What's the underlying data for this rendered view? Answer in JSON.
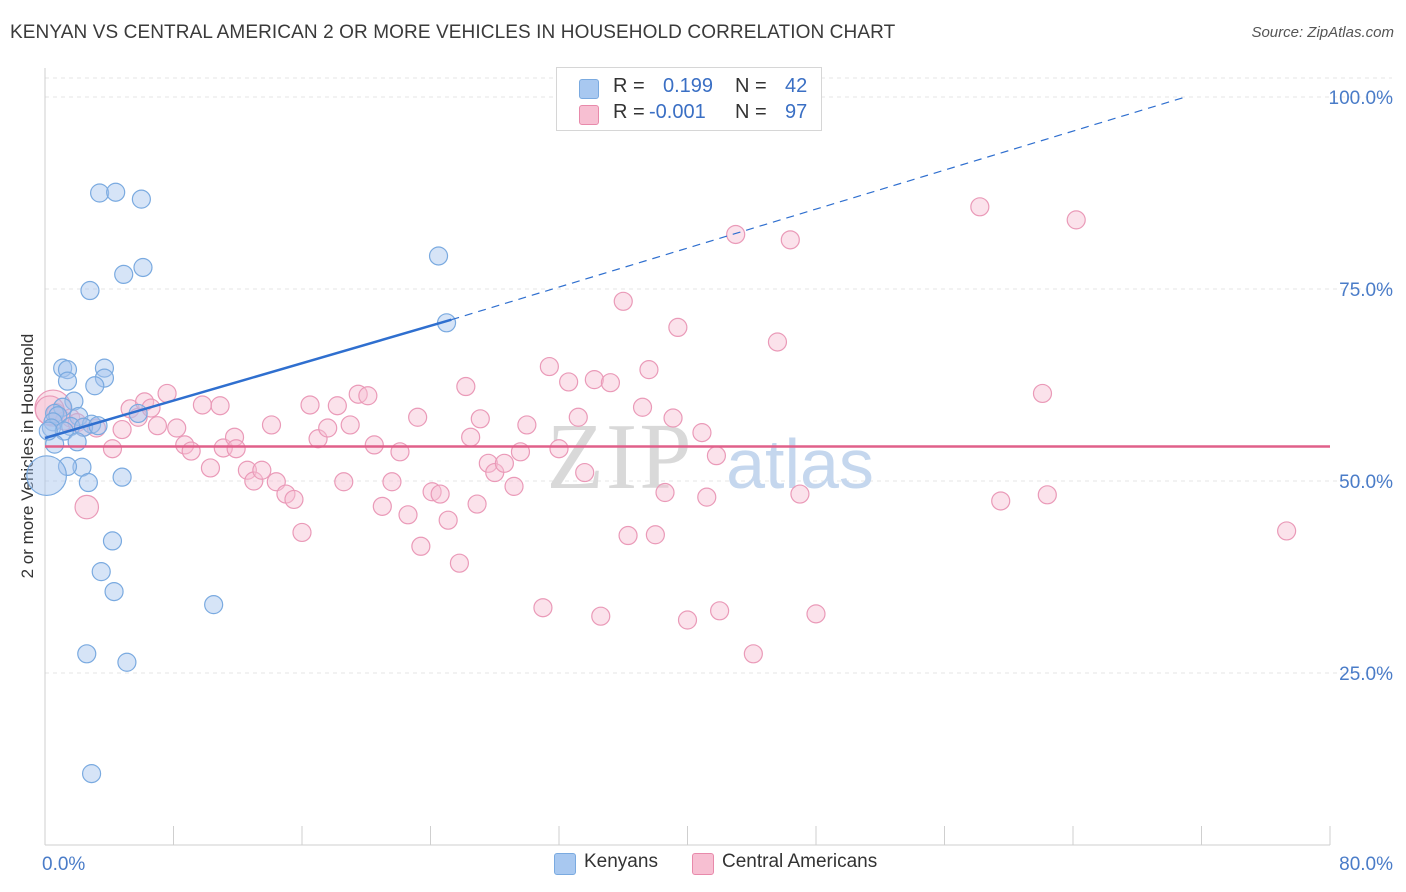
{
  "title": "KENYAN VS CENTRAL AMERICAN 2 OR MORE VEHICLES IN HOUSEHOLD CORRELATION CHART",
  "source": "Source: ZipAtlas.com",
  "legend": {
    "rows": [
      {
        "r_label": "R =",
        "r_value": "0.199",
        "n_label": "N =",
        "n_value": "42",
        "color": "#a8c8f0",
        "border": "#7aaae0"
      },
      {
        "r_label": "R =",
        "r_value": "-0.001",
        "n_label": "N =",
        "n_value": "97",
        "color": "#f7bfd2",
        "border": "#e88aab"
      }
    ]
  },
  "bottom_legend": {
    "kenyans": "Kenyans",
    "central_americans": "Central Americans"
  },
  "chart_data": {
    "type": "scatter",
    "title": "KENYAN VS CENTRAL AMERICAN 2 OR MORE VEHICLES IN HOUSEHOLD CORRELATION CHART",
    "xlabel": "",
    "ylabel": "2 or more Vehicles in Household",
    "xlim": [
      0,
      80
    ],
    "ylim": [
      0,
      105
    ],
    "x_tick_labels": [
      "0.0%",
      "80.0%"
    ],
    "y_tick_labels": [
      "25.0%",
      "50.0%",
      "75.0%",
      "100.0%"
    ],
    "y_ticks": [
      25,
      50,
      75,
      100
    ],
    "colors": {
      "kenyans": "#6fa0e0",
      "central_americans": "#ee8fb0",
      "kenyans_line": "#2f6fcf",
      "central_line": "#e0608a"
    },
    "series": [
      {
        "name": "Kenyans",
        "trend": {
          "x0": 0,
          "y0": 55.6,
          "x1": 25.3,
          "y1": 71.0,
          "dash_to_x": 71,
          "dash_to_y": 100
        },
        "points": [
          [
            3.4,
            87.5
          ],
          [
            4.4,
            87.6
          ],
          [
            6.0,
            86.7
          ],
          [
            6.1,
            77.8
          ],
          [
            4.9,
            76.9
          ],
          [
            2.8,
            74.8
          ],
          [
            24.5,
            79.3
          ],
          [
            25.0,
            70.6
          ],
          [
            1.1,
            64.7
          ],
          [
            1.4,
            64.5
          ],
          [
            3.7,
            64.7
          ],
          [
            3.7,
            63.4
          ],
          [
            1.4,
            63.0
          ],
          [
            3.1,
            62.4
          ],
          [
            1.8,
            60.4
          ],
          [
            1.1,
            59.6
          ],
          [
            0.6,
            58.8
          ],
          [
            0.8,
            58.5
          ],
          [
            5.8,
            58.8
          ],
          [
            2.1,
            58.4
          ],
          [
            0.5,
            57.7
          ],
          [
            2.9,
            57.4
          ],
          [
            1.6,
            57.1
          ],
          [
            0.4,
            56.9
          ],
          [
            1.2,
            56.5
          ],
          [
            2.4,
            57.0
          ],
          [
            3.3,
            57.2
          ],
          [
            0.6,
            54.8
          ],
          [
            2.0,
            55.1
          ],
          [
            2.3,
            51.8
          ],
          [
            1.4,
            51.9
          ],
          [
            0.1,
            50.7
          ],
          [
            4.8,
            50.5
          ],
          [
            2.7,
            49.8
          ],
          [
            4.2,
            42.2
          ],
          [
            3.5,
            38.2
          ],
          [
            4.3,
            35.6
          ],
          [
            10.5,
            33.9
          ],
          [
            2.6,
            27.5
          ],
          [
            5.1,
            26.4
          ],
          [
            2.9,
            11.9
          ],
          [
            0.2,
            56.5
          ]
        ],
        "sizes": [
          1,
          1,
          1,
          1,
          1,
          1,
          1,
          1,
          1,
          1,
          1,
          1,
          1,
          1,
          1,
          1,
          1,
          1,
          1,
          1,
          1,
          1,
          1,
          1,
          1,
          1,
          1,
          1,
          1,
          1,
          1,
          2.2,
          1,
          1,
          1,
          1,
          1,
          1,
          1,
          1,
          1,
          1
        ]
      },
      {
        "name": "Central Americans",
        "trend": {
          "x0": 0,
          "y0": 54.5,
          "x1": 80,
          "y1": 54.5
        },
        "points": [
          [
            0.5,
            59.5
          ],
          [
            0.7,
            58.9
          ],
          [
            1.2,
            57.8
          ],
          [
            1.6,
            58.2
          ],
          [
            2.0,
            57.6
          ],
          [
            2.4,
            57.0
          ],
          [
            2.6,
            46.6
          ],
          [
            3.2,
            56.9
          ],
          [
            4.2,
            54.2
          ],
          [
            4.8,
            56.7
          ],
          [
            5.3,
            59.4
          ],
          [
            5.8,
            58.3
          ],
          [
            6.2,
            60.3
          ],
          [
            6.6,
            59.5
          ],
          [
            7.0,
            57.2
          ],
          [
            7.6,
            61.4
          ],
          [
            8.2,
            56.9
          ],
          [
            8.7,
            54.7
          ],
          [
            9.1,
            53.9
          ],
          [
            9.8,
            59.9
          ],
          [
            10.3,
            51.7
          ],
          [
            10.9,
            59.8
          ],
          [
            11.1,
            54.3
          ],
          [
            11.8,
            55.7
          ],
          [
            11.9,
            54.2
          ],
          [
            12.6,
            51.4
          ],
          [
            13.0,
            50.0
          ],
          [
            13.5,
            51.4
          ],
          [
            14.1,
            57.3
          ],
          [
            14.4,
            49.9
          ],
          [
            15.0,
            48.3
          ],
          [
            15.5,
            47.6
          ],
          [
            16.0,
            43.3
          ],
          [
            16.5,
            59.9
          ],
          [
            17.0,
            55.5
          ],
          [
            17.6,
            56.9
          ],
          [
            18.2,
            59.8
          ],
          [
            18.6,
            49.9
          ],
          [
            19.0,
            57.3
          ],
          [
            19.5,
            61.3
          ],
          [
            20.1,
            61.1
          ],
          [
            20.5,
            54.7
          ],
          [
            21.0,
            46.7
          ],
          [
            21.6,
            49.9
          ],
          [
            22.1,
            53.8
          ],
          [
            22.6,
            45.6
          ],
          [
            23.2,
            58.3
          ],
          [
            23.4,
            41.5
          ],
          [
            24.1,
            48.6
          ],
          [
            24.6,
            48.3
          ],
          [
            25.1,
            44.9
          ],
          [
            25.8,
            39.3
          ],
          [
            26.2,
            62.3
          ],
          [
            26.5,
            55.7
          ],
          [
            27.1,
            58.1
          ],
          [
            27.6,
            52.3
          ],
          [
            28.0,
            51.1
          ],
          [
            28.6,
            52.3
          ],
          [
            29.2,
            49.3
          ],
          [
            29.6,
            53.8
          ],
          [
            30.0,
            57.3
          ],
          [
            31.0,
            33.5
          ],
          [
            31.4,
            64.9
          ],
          [
            32.0,
            54.2
          ],
          [
            32.6,
            62.9
          ],
          [
            33.2,
            58.3
          ],
          [
            33.6,
            51.1
          ],
          [
            34.2,
            63.2
          ],
          [
            34.6,
            32.4
          ],
          [
            35.2,
            62.8
          ],
          [
            36.0,
            73.4
          ],
          [
            36.3,
            42.9
          ],
          [
            37.2,
            59.6
          ],
          [
            37.6,
            64.5
          ],
          [
            38.0,
            43.0
          ],
          [
            38.6,
            48.5
          ],
          [
            39.1,
            58.2
          ],
          [
            39.4,
            70.0
          ],
          [
            40.0,
            31.9
          ],
          [
            40.9,
            56.3
          ],
          [
            41.2,
            47.9
          ],
          [
            41.8,
            53.3
          ],
          [
            42.0,
            33.1
          ],
          [
            43.0,
            82.1
          ],
          [
            44.1,
            27.5
          ],
          [
            45.6,
            68.1
          ],
          [
            46.4,
            81.4
          ],
          [
            47.0,
            48.3
          ],
          [
            48.0,
            32.7
          ],
          [
            58.2,
            85.7
          ],
          [
            59.5,
            47.4
          ],
          [
            62.1,
            61.4
          ],
          [
            62.4,
            48.2
          ],
          [
            64.2,
            84.0
          ],
          [
            77.3,
            43.5
          ],
          [
            26.9,
            47.0
          ],
          [
            0.3,
            59.2
          ]
        ],
        "sizes": [
          2.0,
          1,
          1,
          1,
          1,
          1,
          1.3,
          1,
          1,
          1,
          1,
          1,
          1,
          1,
          1,
          1,
          1,
          1,
          1,
          1,
          1,
          1,
          1,
          1,
          1,
          1,
          1,
          1,
          1,
          1,
          1,
          1,
          1,
          1,
          1,
          1,
          1,
          1,
          1,
          1,
          1,
          1,
          1,
          1,
          1,
          1,
          1,
          1,
          1,
          1,
          1,
          1,
          1,
          1,
          1,
          1,
          1,
          1,
          1,
          1,
          1,
          1,
          1,
          1,
          1,
          1,
          1,
          1,
          1,
          1,
          1,
          1,
          1,
          1,
          1,
          1,
          1,
          1,
          1,
          1,
          1,
          1,
          1,
          1,
          1,
          1,
          1,
          1,
          1,
          1,
          1,
          1,
          1,
          1,
          1,
          1,
          1.6
        ]
      }
    ]
  }
}
